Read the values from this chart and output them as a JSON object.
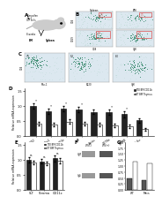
{
  "panel_D": {
    "groups": [
      "SiO2",
      "Rac1",
      "CD3e",
      "IgM",
      "Aiolos",
      "CD79a",
      "Ig-PB8",
      "Bcl-6u"
    ],
    "tko_values": [
      1.0,
      0.82,
      0.92,
      0.88,
      0.8,
      0.78,
      0.72,
      0.52
    ],
    "ot_values": [
      0.42,
      0.38,
      0.48,
      0.42,
      0.38,
      0.35,
      0.32,
      0.22
    ],
    "tko_errors": [
      0.1,
      0.08,
      0.09,
      0.09,
      0.08,
      0.09,
      0.1,
      0.07
    ],
    "ot_errors": [
      0.06,
      0.05,
      0.07,
      0.06,
      0.06,
      0.05,
      0.06,
      0.04
    ],
    "tko_color": "#222222",
    "ot_color": "#ffffff",
    "ylabel": "Relative mRNA expression",
    "ylim": [
      0,
      1.6
    ],
    "yticks": [
      0,
      0.5,
      1.0,
      1.5
    ],
    "significance": [
      true,
      true,
      true,
      true,
      false,
      true,
      true,
      false
    ],
    "sig_label": "*"
  },
  "panel_E": {
    "groups": [
      "SLT",
      "Stroma",
      "CD11c"
    ],
    "tko_values": [
      1.0,
      0.95,
      1.05
    ],
    "ot_values": [
      0.92,
      0.88,
      0.98
    ],
    "tko_errors": [
      0.08,
      0.07,
      0.09
    ],
    "ot_errors": [
      0.07,
      0.06,
      0.08
    ],
    "tko_color": "#222222",
    "ot_color": "#ffffff",
    "ylabel": "Relative mRNA expression",
    "ylim": [
      0,
      1.6
    ],
    "yticks": [
      0,
      0.5,
      1.0,
      1.5
    ],
    "ns_label": "ns"
  },
  "legend_tko": "TKO BM CD11b",
  "legend_ot": "OT BM Thymus",
  "bg_color": "#f5f5f5",
  "flow_bg": "#dce8f0",
  "flow_dot_color": "#3a8a6e",
  "flow_dot_light": "#b0d4c8",
  "flow_gate_color": "#e05050"
}
